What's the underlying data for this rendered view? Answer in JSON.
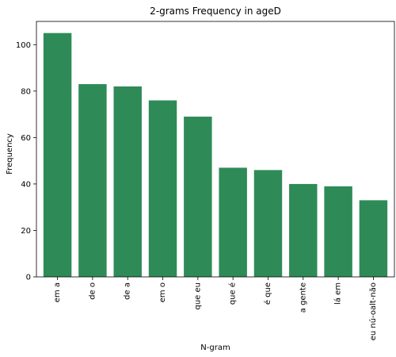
{
  "chart_data": {
    "type": "bar",
    "title": "2-grams Frequency in ageD",
    "xlabel": "N-gram",
    "ylabel": "Frequency",
    "categories": [
      "em a",
      "de o",
      "de a",
      "em o",
      "que eu",
      "que é",
      "é que",
      "a gente",
      "lá em",
      "eu nú-oalt-não"
    ],
    "values": [
      105,
      83,
      82,
      76,
      69,
      47,
      46,
      40,
      39,
      33
    ],
    "ylim": [
      0,
      110
    ],
    "yticks": [
      0,
      20,
      40,
      60,
      80,
      100
    ],
    "bar_color": "#2e8b57",
    "grid": false,
    "legend": "none"
  }
}
